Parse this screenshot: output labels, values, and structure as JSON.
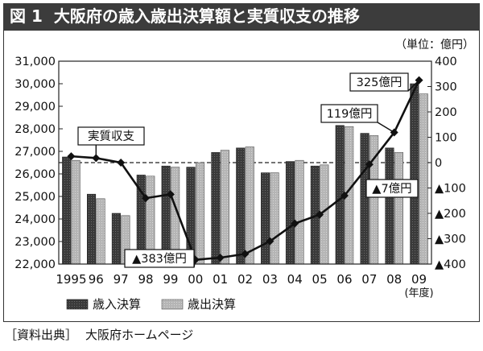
{
  "figure": {
    "number": "図 1",
    "title": "大阪府の歳入歳出決算額と実質収支の推移"
  },
  "source": {
    "label": "［資料出典］",
    "text": "大阪府ホームページ"
  },
  "colors": {
    "title_bar": "#3c3c3c",
    "revenue_bar": "#3a3a3a",
    "expenditure_bar": "#b5b5b5",
    "balance_line": "#111111"
  },
  "chart_data": {
    "type": "bar",
    "unit_label": "（単位：億円）",
    "x_unit_label": "(年度)",
    "categories": [
      "1995",
      "96",
      "97",
      "98",
      "99",
      "00",
      "01",
      "02",
      "03",
      "04",
      "05",
      "06",
      "07",
      "08",
      "09"
    ],
    "series": [
      {
        "name": "歳入決算",
        "type": "bar",
        "axis": "left",
        "values": [
          26750,
          25100,
          24250,
          25950,
          26350,
          26300,
          26950,
          27150,
          26050,
          26550,
          26350,
          28150,
          27800,
          27150,
          30000
        ]
      },
      {
        "name": "歳出決算",
        "type": "bar",
        "axis": "left",
        "values": [
          26600,
          24900,
          24150,
          25900,
          26300,
          26500,
          27050,
          27200,
          26050,
          26600,
          26400,
          28100,
          27700,
          26950,
          29550
        ]
      },
      {
        "type": "line",
        "axis": "right",
        "values": [
          25,
          18,
          0,
          -140,
          -125,
          -383,
          -375,
          -360,
          -310,
          -240,
          -205,
          -130,
          -7,
          119,
          325
        ]
      }
    ],
    "y_left": {
      "range": [
        22000,
        31000
      ],
      "ticks": [
        "22,000",
        "23,000",
        "24,000",
        "25,000",
        "26,000",
        "27,000",
        "28,000",
        "29,000",
        "30,000",
        "31,000"
      ]
    },
    "y_right": {
      "range": [
        -400,
        400
      ],
      "ticks": [
        "▲400",
        "▲300",
        "▲200",
        "▲100",
        "0",
        "100",
        "200",
        "300",
        "400"
      ]
    },
    "annotations": [
      {
        "text": "実質収支"
      },
      {
        "text": "▲383億円"
      },
      {
        "text": "▲7億円"
      },
      {
        "text": "119億円"
      },
      {
        "text": "325億円"
      }
    ],
    "legend_position": "bottom-left",
    "zero_line": "dashed"
  }
}
